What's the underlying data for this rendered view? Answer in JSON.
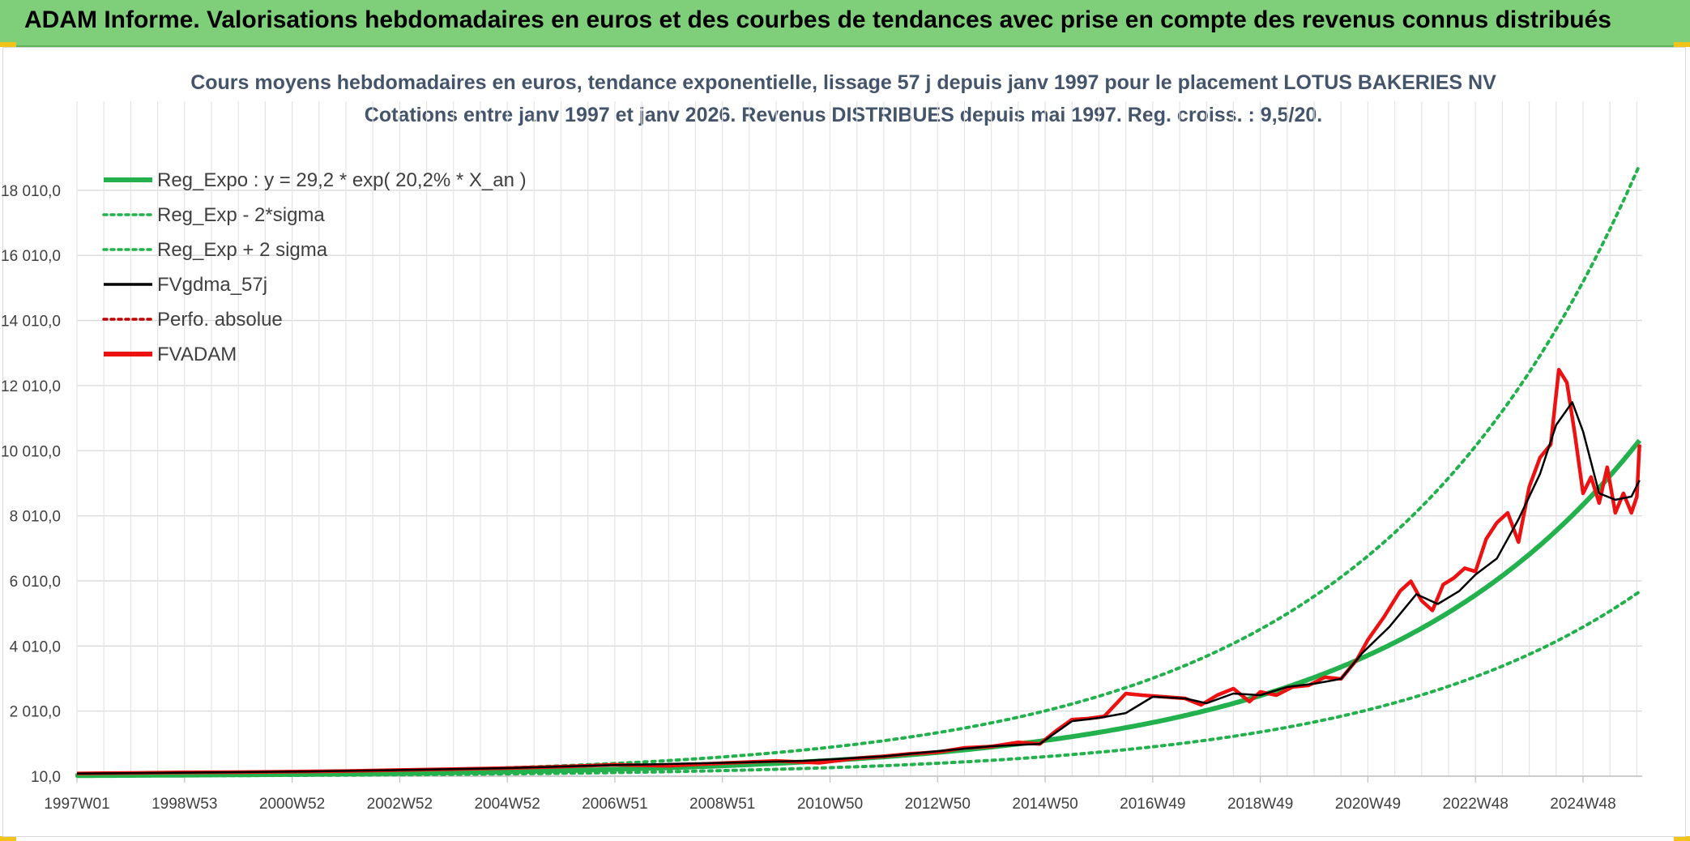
{
  "banner": {
    "title": "ADAM Informe. Valorisations hebdomadaires en euros et des courbes de tendances avec prise en compte des revenus connus distribués",
    "color": "#7fcf7a"
  },
  "chart_data": {
    "type": "line",
    "title_line1": "Cours moyens hebdomadaires en euros, tendance exponentielle, lissage 57 j depuis janv 1997 pour le placement LOTUS BAKERIES NV",
    "title_line2": "Cotations entre janv 1997 et janv 2026. Revenus DISTRIBUES depuis mai 1997. Reg. croiss. : 9,5/20.",
    "x_tick_labels": [
      "1997W01",
      "1998W53",
      "2000W52",
      "2002W52",
      "2004W52",
      "2006W51",
      "2008W51",
      "2010W50",
      "2012W50",
      "2014W50",
      "2016W49",
      "2018W49",
      "2020W49",
      "2022W48",
      "2024W48"
    ],
    "x_tick_years": [
      1997.0,
      1999.0,
      2001.0,
      2003.0,
      2005.0,
      2007.0,
      2009.0,
      2011.0,
      2013.0,
      2015.0,
      2017.0,
      2019.0,
      2021.0,
      2023.0,
      2025.0
    ],
    "xlim": [
      1997.0,
      2026.1
    ],
    "y_tick_labels": [
      "10,0",
      "2 010,0",
      "4 010,0",
      "6 010,0",
      "8 010,0",
      "10 010,0",
      "12 010,0",
      "14 010,0",
      "16 010,0",
      "18 010,0"
    ],
    "y_ticks": [
      10,
      2010,
      4010,
      6010,
      8010,
      10010,
      12010,
      14010,
      16010,
      18010
    ],
    "ylim": [
      10,
      19500
    ],
    "grid": true,
    "legend_position": "top-left",
    "regression": {
      "a": 29.2,
      "b": 0.202,
      "x0": 1997.0,
      "sigma_factor_low": 0.55,
      "sigma_factor_high": 1.82
    },
    "series": [
      {
        "name": "Reg_Expo : y = 29,2 * exp( 20,2% *  X_an )",
        "color": "#22b14c",
        "style": "solid-thick"
      },
      {
        "name": "Reg_Exp - 2*sigma",
        "color": "#22b14c",
        "style": "dotted"
      },
      {
        "name": "Reg_Exp + 2 sigma",
        "color": "#22b14c",
        "style": "dotted"
      },
      {
        "name": "FVgdma_57j",
        "color": "#000000",
        "style": "solid",
        "x": [
          1997.0,
          1999.0,
          2001.0,
          2003.0,
          2005.0,
          2007.0,
          2009.0,
          2010.5,
          2012.0,
          2013.0,
          2014.0,
          2014.9,
          2015.5,
          2016.0,
          2016.5,
          2017.0,
          2017.6,
          2018.0,
          2018.5,
          2019.0,
          2019.5,
          2020.0,
          2020.5,
          2020.9,
          2021.4,
          2021.9,
          2022.3,
          2022.7,
          2023.0,
          2023.4,
          2023.8,
          2024.2,
          2024.5,
          2024.8,
          2025.0,
          2025.3,
          2025.6,
          2025.9,
          2026.05
        ],
        "y": [
          90,
          120,
          150,
          200,
          260,
          350,
          420,
          480,
          620,
          780,
          930,
          1000,
          1700,
          1800,
          1950,
          2450,
          2400,
          2250,
          2550,
          2500,
          2750,
          2850,
          3000,
          3800,
          4600,
          5600,
          5300,
          5700,
          6200,
          6700,
          7900,
          9300,
          10800,
          11500,
          10600,
          8700,
          8500,
          8600,
          9100
        ]
      },
      {
        "name": "Perfo. absolue",
        "color": "#c00000",
        "style": "dotted"
      },
      {
        "name": "FVADAM",
        "color": "#ee1111",
        "style": "solid-thick",
        "x": [
          1997.0,
          1998.0,
          1999.0,
          2000.0,
          2001.0,
          2002.0,
          2003.0,
          2004.0,
          2005.0,
          2006.0,
          2007.0,
          2008.0,
          2009.0,
          2010.0,
          2010.8,
          2011.5,
          2012.0,
          2012.5,
          2013.0,
          2013.5,
          2014.0,
          2014.5,
          2014.9,
          2015.2,
          2015.5,
          2015.8,
          2016.1,
          2016.5,
          2016.8,
          2017.2,
          2017.6,
          2017.9,
          2018.2,
          2018.5,
          2018.8,
          2019.0,
          2019.3,
          2019.6,
          2019.9,
          2020.2,
          2020.5,
          2020.8,
          2021.0,
          2021.3,
          2021.6,
          2021.8,
          2022.0,
          2022.2,
          2022.4,
          2022.6,
          2022.8,
          2023.0,
          2023.2,
          2023.4,
          2023.6,
          2023.8,
          2024.0,
          2024.2,
          2024.4,
          2024.55,
          2024.7,
          2024.85,
          2025.0,
          2025.15,
          2025.3,
          2025.45,
          2025.6,
          2025.75,
          2025.9,
          2026.0,
          2026.05
        ],
        "y": [
          95,
          110,
          130,
          135,
          150,
          170,
          200,
          230,
          260,
          300,
          360,
          330,
          410,
          480,
          420,
          560,
          620,
          700,
          750,
          880,
          920,
          1050,
          1000,
          1400,
          1750,
          1780,
          1850,
          2550,
          2500,
          2450,
          2400,
          2200,
          2500,
          2700,
          2300,
          2600,
          2500,
          2750,
          2800,
          3050,
          3000,
          3600,
          4200,
          4900,
          5700,
          6000,
          5400,
          5100,
          5900,
          6100,
          6400,
          6300,
          7300,
          7800,
          8100,
          7200,
          8900,
          9800,
          10200,
          12500,
          12100,
          10500,
          8700,
          9200,
          8400,
          9500,
          8100,
          8700,
          8100,
          8600,
          10200
        ]
      }
    ]
  }
}
